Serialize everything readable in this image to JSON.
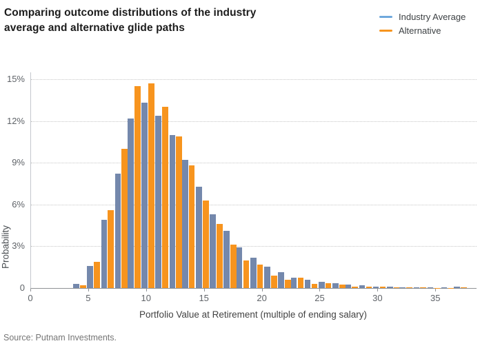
{
  "header": {
    "title": "Comparing outcome distributions of the industry average and alternative glide paths"
  },
  "legend": {
    "items": [
      {
        "label": "Industry Average",
        "color": "#6fa8dc"
      },
      {
        "label": "Alternative",
        "color": "#f7941e"
      }
    ]
  },
  "footer": {
    "source": "Source: Putnam Investments."
  },
  "chart_data": {
    "type": "bar",
    "title": "Comparing outcome distributions of the industry average and alternative glide paths",
    "xlabel": "Portfolio Value at Retirement (multiple of ending salary)",
    "ylabel": "Probability",
    "xlim": [
      0,
      38.5
    ],
    "ylim": [
      0,
      15.5
    ],
    "xticks": [
      0,
      5,
      10,
      15,
      20,
      25,
      30,
      35
    ],
    "yticks": [
      {
        "value": 0,
        "label": "0"
      },
      {
        "value": 3,
        "label": "3%"
      },
      {
        "value": 6,
        "label": "6%"
      },
      {
        "value": 9,
        "label": "9%"
      },
      {
        "value": 12,
        "label": "12%"
      },
      {
        "value": 15,
        "label": "15%"
      }
    ],
    "grid": "horizontal-dotted",
    "legend_position": "top-right",
    "x": [
      4.2,
      5.4,
      6.6,
      7.8,
      8.9,
      10.1,
      11.3,
      12.5,
      13.6,
      14.8,
      16.0,
      17.2,
      18.3,
      19.5,
      20.7,
      21.9,
      23.0,
      24.2,
      25.4,
      26.6,
      27.7,
      28.9,
      30.1,
      31.3,
      32.4,
      33.6,
      34.8,
      36.0,
      37.1
    ],
    "series": [
      {
        "name": "Industry Average",
        "color": "#7488ac",
        "values": [
          0.3,
          1.6,
          4.9,
          8.2,
          12.2,
          13.3,
          12.4,
          11.0,
          9.2,
          7.3,
          5.3,
          4.1,
          2.9,
          2.2,
          1.55,
          1.15,
          0.75,
          0.6,
          0.45,
          0.35,
          0.25,
          0.2,
          0.12,
          0.1,
          0.07,
          0.06,
          0.05,
          0.03,
          0.1
        ]
      },
      {
        "name": "Alternative",
        "color": "#f7941e",
        "values": [
          0.2,
          1.9,
          5.6,
          10.0,
          14.5,
          14.7,
          13.0,
          10.9,
          8.8,
          6.3,
          4.6,
          3.1,
          2.0,
          1.7,
          0.9,
          0.6,
          0.72,
          0.3,
          0.35,
          0.25,
          0.1,
          0.08,
          0.12,
          0.05,
          0.04,
          0.03,
          0.02,
          0.02,
          0.03
        ]
      }
    ]
  }
}
